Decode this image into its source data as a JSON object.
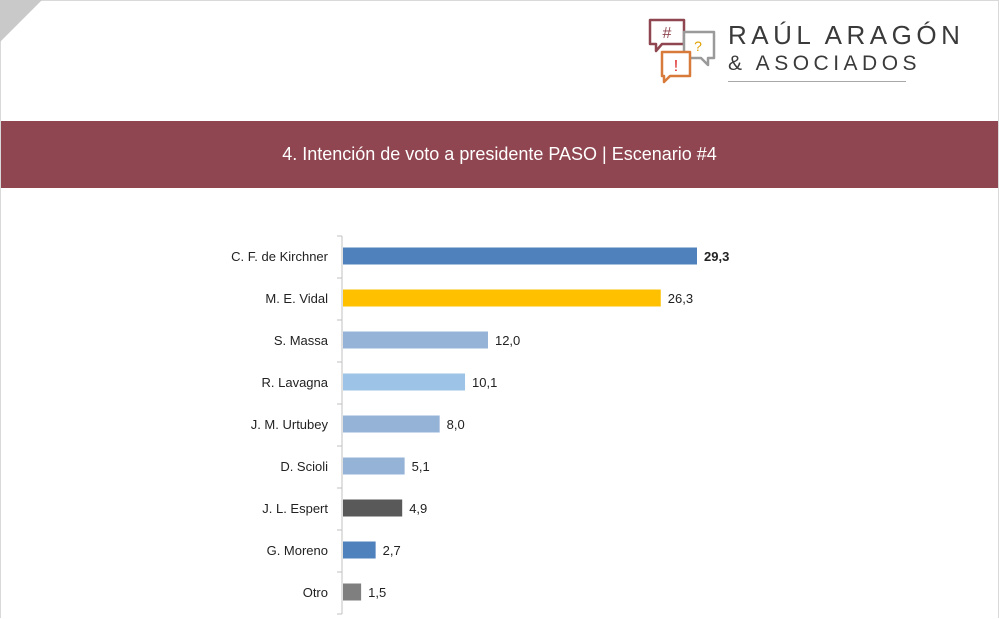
{
  "logo": {
    "name": "RAÚL ARAGÓN",
    "sub": "& ASOCIADOS",
    "icon_glyphs": [
      "#",
      "?",
      "!"
    ]
  },
  "banner": {
    "title": "4. Intención de voto a presidente PASO | Escenario #4"
  },
  "chart_data": {
    "type": "bar",
    "orientation": "horizontal",
    "title": "",
    "xlabel": "",
    "ylabel": "",
    "xlim": [
      0,
      30
    ],
    "grid": false,
    "legend": "none",
    "categories": [
      "C. F. de Kirchner",
      "M. E. Vidal",
      "S. Massa",
      "R. Lavagna",
      "J. M. Urtubey",
      "D. Scioli",
      "J. L. Espert",
      "G. Moreno",
      "Otro"
    ],
    "values": [
      29.3,
      26.3,
      12.0,
      10.1,
      8.0,
      5.1,
      4.9,
      2.7,
      1.5
    ],
    "value_labels": [
      "29,3",
      "26,3",
      "12,0",
      "10,1",
      "8,0",
      "5,1",
      "4,9",
      "2,7",
      "1,5"
    ],
    "bold_labels": [
      true,
      false,
      false,
      false,
      false,
      false,
      false,
      false,
      false
    ],
    "colors": [
      "#4f81bd",
      "#ffc000",
      "#95b3d7",
      "#9dc3e6",
      "#95b3d7",
      "#95b3d7",
      "#595959",
      "#4f81bd",
      "#7f7f7f"
    ]
  }
}
